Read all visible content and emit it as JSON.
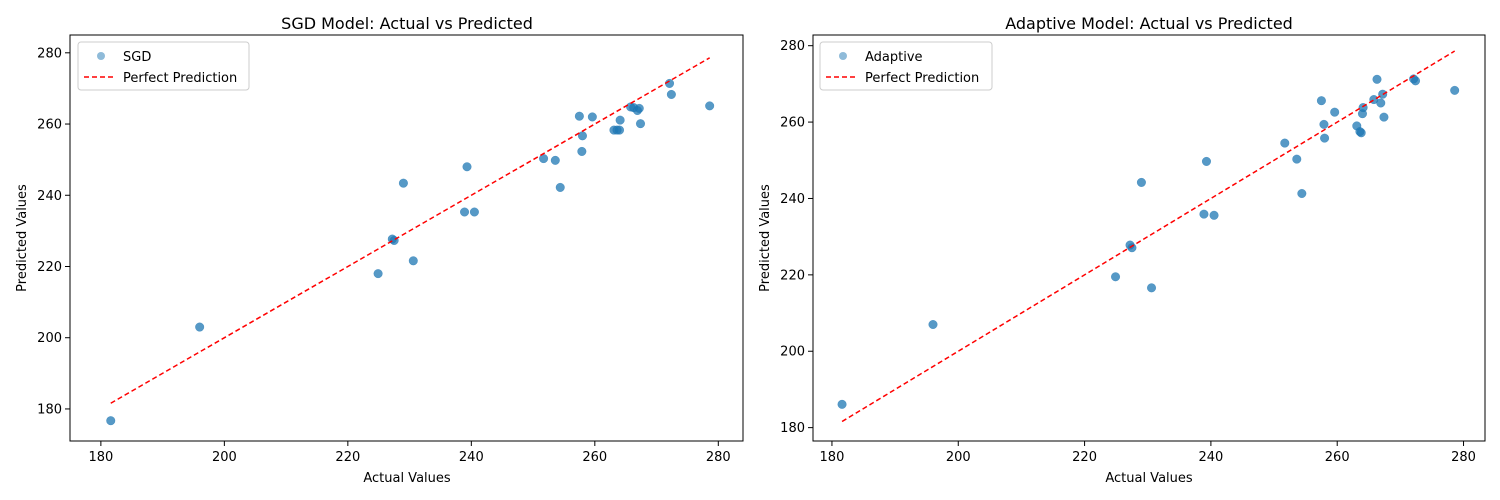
{
  "chart_data": [
    {
      "type": "scatter",
      "title": "SGD Model: Actual vs Predicted",
      "xlabel": "Actual Values",
      "ylabel": "Predicted Values",
      "xlim": [
        175,
        284
      ],
      "ylim": [
        171,
        285
      ],
      "xticks": [
        "180",
        "200",
        "220",
        "240",
        "260",
        "280"
      ],
      "yticks": [
        "180",
        "200",
        "220",
        "240",
        "260",
        "280"
      ],
      "grid": false,
      "legend_position": "top-left",
      "point_color": "#1f77b4",
      "line_color": "#ff0000",
      "series": [
        {
          "name": "SGD",
          "points": [
            [
              181.6,
              176.7
            ],
            [
              196.0,
              203.0
            ],
            [
              224.9,
              218.0
            ],
            [
              227.2,
              227.7
            ],
            [
              227.5,
              227.3
            ],
            [
              229.0,
              243.4
            ],
            [
              230.6,
              221.6
            ],
            [
              238.9,
              235.3
            ],
            [
              239.3,
              248.0
            ],
            [
              240.5,
              235.3
            ],
            [
              251.7,
              250.3
            ],
            [
              253.6,
              249.8
            ],
            [
              254.4,
              242.2
            ],
            [
              257.5,
              262.2
            ],
            [
              257.9,
              252.3
            ],
            [
              258.0,
              256.7
            ],
            [
              259.6,
              262.0
            ],
            [
              263.1,
              258.3
            ],
            [
              263.6,
              258.3
            ],
            [
              264.0,
              258.3
            ],
            [
              264.1,
              261.1
            ],
            [
              265.8,
              264.8
            ],
            [
              266.3,
              264.6
            ],
            [
              266.9,
              263.8
            ],
            [
              267.2,
              264.4
            ],
            [
              267.4,
              260.1
            ],
            [
              272.1,
              271.4
            ],
            [
              272.4,
              268.3
            ],
            [
              278.6,
              265.1
            ]
          ]
        },
        {
          "name": "Perfect Prediction",
          "line": [
            [
              181.6,
              181.6
            ],
            [
              278.6,
              278.6
            ]
          ]
        }
      ]
    },
    {
      "type": "scatter",
      "title": "Adaptive Model: Actual vs Predicted",
      "xlabel": "Actual Values",
      "ylabel": "Predicted Values",
      "xlim": [
        177,
        283.4
      ],
      "ylim": [
        176.5,
        282.8
      ],
      "xticks": [
        "180",
        "200",
        "220",
        "240",
        "260",
        "280"
      ],
      "yticks": [
        "180",
        "200",
        "220",
        "240",
        "260",
        "280"
      ],
      "grid": false,
      "legend_position": "top-left",
      "point_color": "#1f77b4",
      "line_color": "#ff0000",
      "series": [
        {
          "name": "Adaptive",
          "points": [
            [
              181.6,
              186.1
            ],
            [
              196.0,
              207.0
            ],
            [
              224.9,
              219.5
            ],
            [
              227.2,
              227.8
            ],
            [
              227.5,
              227.1
            ],
            [
              229.0,
              244.2
            ],
            [
              230.6,
              216.6
            ],
            [
              238.9,
              235.9
            ],
            [
              239.3,
              249.7
            ],
            [
              240.5,
              235.6
            ],
            [
              251.7,
              254.5
            ],
            [
              253.6,
              250.3
            ],
            [
              254.4,
              241.3
            ],
            [
              257.5,
              265.6
            ],
            [
              257.9,
              259.4
            ],
            [
              258.0,
              255.8
            ],
            [
              259.6,
              262.6
            ],
            [
              263.1,
              259.0
            ],
            [
              263.6,
              257.5
            ],
            [
              263.8,
              257.2
            ],
            [
              264.0,
              262.2
            ],
            [
              264.1,
              263.8
            ],
            [
              265.8,
              265.9
            ],
            [
              266.3,
              271.2
            ],
            [
              266.9,
              265.0
            ],
            [
              267.2,
              267.3
            ],
            [
              267.4,
              261.3
            ],
            [
              272.1,
              271.3
            ],
            [
              272.4,
              270.8
            ],
            [
              278.6,
              268.3
            ]
          ]
        },
        {
          "name": "Perfect Prediction",
          "line": [
            [
              181.6,
              181.6
            ],
            [
              278.6,
              278.6
            ]
          ]
        }
      ]
    }
  ]
}
